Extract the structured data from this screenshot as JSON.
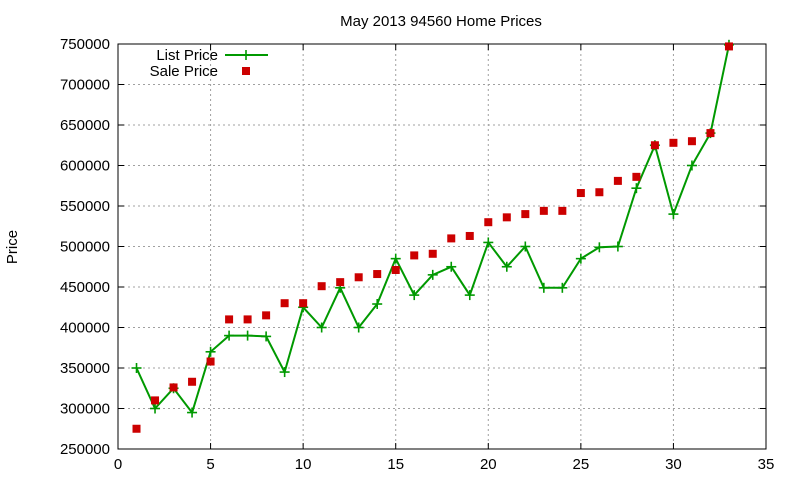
{
  "chart_data": {
    "type": "line",
    "title": "May 2013 94560 Home Prices",
    "xlabel": "",
    "ylabel": "Price",
    "xlim": [
      0,
      35
    ],
    "ylim": [
      250000,
      750000
    ],
    "x_ticks": [
      0,
      5,
      10,
      15,
      20,
      25,
      30,
      35
    ],
    "y_ticks": [
      250000,
      300000,
      350000,
      400000,
      450000,
      500000,
      550000,
      600000,
      650000,
      700000,
      750000
    ],
    "grid": true,
    "legend_position": "top-left",
    "series": [
      {
        "name": "List Price",
        "style": "line-with-cross-markers",
        "color": "#009900",
        "x": [
          1,
          2,
          3,
          4,
          5,
          6,
          7,
          8,
          9,
          10,
          11,
          12,
          13,
          14,
          15,
          16,
          17,
          18,
          19,
          20,
          21,
          22,
          23,
          24,
          25,
          26,
          27,
          28,
          29,
          30,
          31,
          32,
          33
        ],
        "y": [
          350000,
          300000,
          325000,
          295000,
          370000,
          390000,
          390000,
          389000,
          345000,
          425000,
          400000,
          449000,
          400000,
          429000,
          485000,
          440000,
          465000,
          475000,
          440000,
          505000,
          475000,
          500000,
          449000,
          449000,
          485000,
          499000,
          500000,
          572000,
          625000,
          540000,
          600000,
          640000,
          749000
        ]
      },
      {
        "name": "Sale Price",
        "style": "square-markers",
        "color": "#cc0000",
        "x": [
          1,
          2,
          3,
          4,
          5,
          6,
          7,
          8,
          9,
          10,
          11,
          12,
          13,
          14,
          15,
          16,
          17,
          18,
          19,
          20,
          21,
          22,
          23,
          24,
          25,
          26,
          27,
          28,
          29,
          30,
          31,
          32,
          33
        ],
        "y": [
          275000,
          310000,
          326000,
          333000,
          358000,
          410000,
          410000,
          415000,
          430000,
          430000,
          451000,
          456000,
          462000,
          466000,
          471000,
          489000,
          491000,
          510000,
          513000,
          530000,
          536000,
          540000,
          544000,
          544000,
          566000,
          567000,
          581000,
          586000,
          625000,
          628000,
          630000,
          640000,
          747000
        ]
      }
    ]
  }
}
